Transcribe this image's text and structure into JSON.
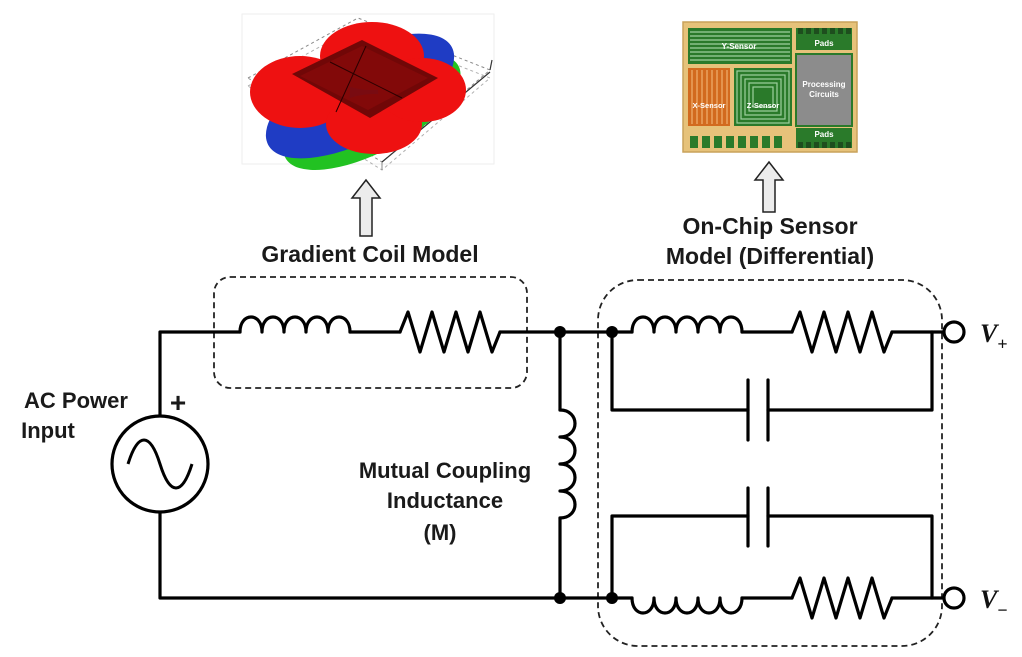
{
  "labels": {
    "gradient_coil_model": "Gradient Coil Model",
    "sensor_model_line1": "On-Chip Sensor",
    "sensor_model_line2": "Model (Differential)",
    "ac_power_line1": "AC Power",
    "ac_power_line2": "Input",
    "plus_sign": "+",
    "mutual_line1": "Mutual Coupling",
    "mutual_line2": "Inductance",
    "mutual_line3": "(M)",
    "v_plus": "V",
    "v_plus_sub": "+",
    "v_minus": "V",
    "v_minus_sub": "−"
  },
  "chip": {
    "y_sensor": "Y-Sensor",
    "pads_top_right": "Pads",
    "processing_line1": "Processing",
    "processing_line2": "Circuits",
    "x_sensor": "X-Sensor",
    "z_sensor": "Z-Sensor",
    "pads_bottom": "Pads"
  },
  "colors": {
    "wire": "#000000",
    "coil_red": "#ee1111",
    "coil_blue": "#1f3cc4",
    "coil_green": "#22c222",
    "chip_gold": "#e6c27a",
    "chip_green": "#2a7a2a",
    "chip_gray": "#8c8c8c",
    "chip_orange": "#d26a1e"
  }
}
